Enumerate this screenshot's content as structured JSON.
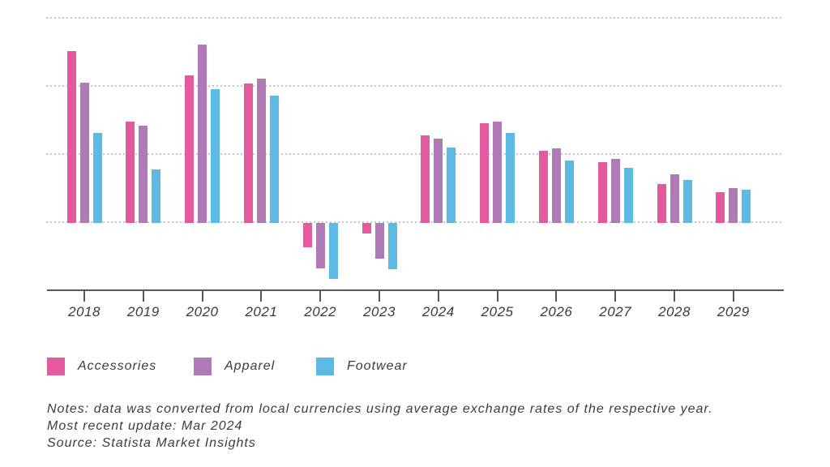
{
  "chart_data": {
    "type": "bar",
    "title": "",
    "xlabel": "",
    "ylabel": "",
    "categories": [
      "2018",
      "2019",
      "2020",
      "2021",
      "2022",
      "2023",
      "2024",
      "2025",
      "2026",
      "2027",
      "2028",
      "2029"
    ],
    "series": [
      {
        "name": "Accessories",
        "color": "#e55a9e",
        "values": [
          12.5,
          7.35,
          10.7,
          10.1,
          -1.8,
          -0.8,
          6.3,
          7.2,
          5.2,
          4.35,
          2.75,
          2.15
        ]
      },
      {
        "name": "Apparel",
        "color": "#b07ab7",
        "values": [
          10.2,
          7.0,
          13.0,
          10.5,
          -3.35,
          -2.6,
          6.1,
          7.3,
          5.35,
          4.6,
          3.45,
          2.45
        ]
      },
      {
        "name": "Footwear",
        "color": "#5cbae5",
        "values": [
          6.5,
          3.8,
          9.7,
          9.25,
          -4.1,
          -3.4,
          5.4,
          6.5,
          4.45,
          3.95,
          3.05,
          2.35
        ]
      }
    ],
    "y_axis_tick_labels_visible": false,
    "ylim": [
      -5,
      15
    ],
    "gridline_values": [
      0,
      5,
      10,
      15
    ],
    "grid": "horizontal-dotted",
    "legend_position": "bottom-left",
    "note_scale": "y values estimated from gridlines; no y-axis labels shown in image"
  },
  "legend": {
    "items": [
      "Accessories",
      "Apparel",
      "Footwear"
    ]
  },
  "notes": {
    "line1": "Notes: data was converted from local currencies using average exchange rates of the respective year.",
    "line2": "Most recent update: Mar 2024",
    "line3": "Source: Statista Market Insights"
  },
  "colors": {
    "accessories": "#e55a9e",
    "apparel": "#b07ab7",
    "footwear": "#5cbae5",
    "gridline": "#c8c8c8",
    "axis": "#55585c",
    "text": "#3c3c3c",
    "background": "#ffffff"
  }
}
